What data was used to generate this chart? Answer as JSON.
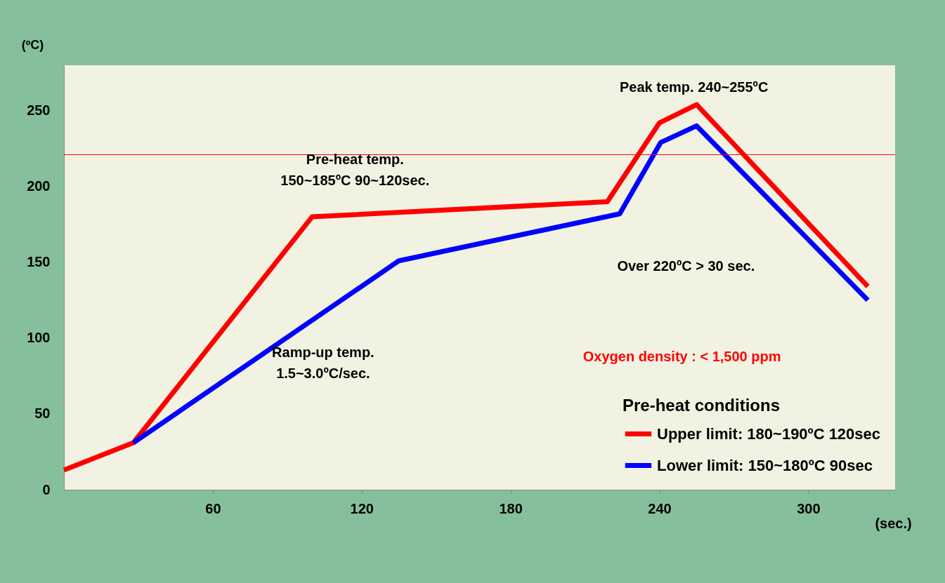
{
  "chart_data": {
    "type": "line",
    "xlabel": "(sec.)",
    "ylabel": "(ºC)",
    "legend_title": "Pre-heat conditions",
    "xlim": [
      0,
      335
    ],
    "xticks": [
      60,
      120,
      180,
      240,
      300
    ],
    "ylim": [
      0,
      280
    ],
    "yticks": [
      0,
      50,
      100,
      150,
      200,
      250
    ],
    "grid": false,
    "legend": "bottom right",
    "marker": "none",
    "line_style": "solid",
    "series": [
      {
        "name": "Upper limit: 180~190ºC 120sec",
        "color": "#ff0000",
        "x": [
          0,
          28,
          100,
          219,
          240,
          255,
          324
        ],
        "values": [
          13,
          31,
          180,
          190,
          242,
          254,
          134
        ]
      },
      {
        "name": "Lower limit: 150~180ºC 90sec",
        "color": "#0000ff",
        "x": [
          28,
          135,
          224,
          240.5,
          255,
          324
        ],
        "values": [
          31,
          151,
          182,
          229,
          240,
          125
        ]
      }
    ],
    "ref_lines": [
      {
        "axis": "y",
        "value": 221,
        "color": "#ff0000"
      }
    ],
    "annotations": [
      "Peak temp.  240~255ºC",
      "Pre-heat temp.\n150~185ºC 90~120sec.",
      "Ramp-up temp.\n1.5~3.0ºC/sec.",
      "Over 220ºC  > 30 sec.",
      "Oxygen density :  < 1,500 ppm"
    ]
  }
}
